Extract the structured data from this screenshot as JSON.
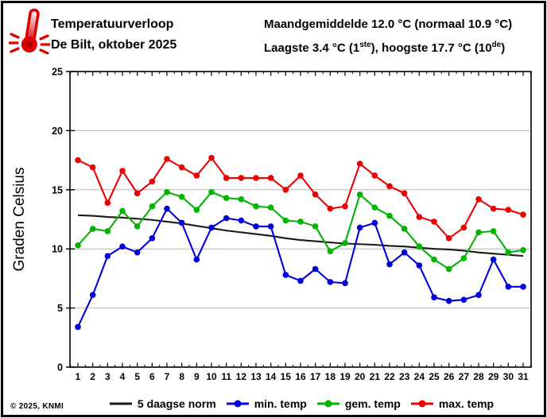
{
  "header": {
    "title": "Temperatuurverloop",
    "subtitle": "De Bilt, oktober 2025",
    "right_line1": "Maandgemiddelde 12.0 °C (normaal 10.9 °C)",
    "right_line2_parts": [
      "Laagste 3.4 °C (1",
      "ste",
      "), hoogste 17.7 °C (10",
      "de",
      ")"
    ]
  },
  "footer": {
    "copyright": "© 2025, KNMI"
  },
  "legend": [
    {
      "label": "5 daagse norm",
      "color": "#1a1a1a",
      "marker": "line"
    },
    {
      "label": "min. temp",
      "color": "#0000dd",
      "marker": "line-dot"
    },
    {
      "label": "gem. temp",
      "color": "#00b400",
      "marker": "line-dot"
    },
    {
      "label": "max. temp",
      "color": "#ee0000",
      "marker": "line-dot"
    }
  ],
  "chart_data": {
    "type": "line",
    "title": "Temperatuurverloop — De Bilt, oktober 2025",
    "ylabel": "Graden Celsius",
    "xlabel": "",
    "x": [
      1,
      2,
      3,
      4,
      5,
      6,
      7,
      8,
      9,
      10,
      11,
      12,
      13,
      14,
      15,
      16,
      17,
      18,
      19,
      20,
      21,
      22,
      23,
      24,
      25,
      26,
      27,
      28,
      29,
      30,
      31
    ],
    "ylim": [
      0,
      25
    ],
    "yticks": [
      0,
      5,
      10,
      15,
      20,
      25
    ],
    "grid": "horizontal",
    "legend_position": "bottom",
    "series": [
      {
        "name": "5 daagse norm",
        "color": "#1a1a1a",
        "marker": false,
        "values": [
          12.85,
          12.8,
          12.7,
          12.65,
          12.55,
          12.45,
          12.3,
          12.15,
          11.95,
          11.75,
          11.55,
          11.4,
          11.25,
          11.1,
          10.9,
          10.75,
          10.65,
          10.55,
          10.45,
          10.4,
          10.35,
          10.25,
          10.2,
          10.1,
          10.0,
          9.95,
          9.85,
          9.7,
          9.6,
          9.5,
          9.4
        ]
      },
      {
        "name": "min. temp",
        "color": "#0000dd",
        "marker": true,
        "values": [
          3.4,
          6.1,
          9.4,
          10.2,
          9.7,
          10.9,
          13.4,
          12.2,
          9.1,
          11.8,
          12.6,
          12.4,
          11.9,
          11.9,
          7.8,
          7.3,
          8.3,
          7.2,
          7.1,
          11.8,
          12.2,
          8.7,
          9.7,
          8.6,
          5.9,
          5.6,
          5.7,
          6.1,
          9.1,
          6.8,
          6.8
        ]
      },
      {
        "name": "gem. temp",
        "color": "#00b400",
        "marker": true,
        "values": [
          10.3,
          11.7,
          11.5,
          13.2,
          11.9,
          13.6,
          14.8,
          14.4,
          13.3,
          14.8,
          14.3,
          14.2,
          13.6,
          13.5,
          12.4,
          12.3,
          11.9,
          9.8,
          10.5,
          14.6,
          13.5,
          12.8,
          11.7,
          10.2,
          9.1,
          8.3,
          9.2,
          11.4,
          11.5,
          9.7,
          9.9
        ]
      },
      {
        "name": "max. temp",
        "color": "#ee0000",
        "marker": true,
        "values": [
          17.5,
          16.9,
          13.9,
          16.6,
          14.7,
          15.7,
          17.6,
          16.9,
          16.2,
          17.7,
          16.0,
          16.0,
          16.0,
          16.0,
          15.0,
          16.2,
          14.6,
          13.4,
          13.6,
          17.2,
          16.2,
          15.3,
          14.7,
          12.7,
          12.3,
          10.9,
          11.8,
          14.2,
          13.4,
          13.3,
          12.9
        ]
      }
    ],
    "annotations": {
      "month_mean_c": 12.0,
      "normal_mean_c": 10.9,
      "lowest_c": 3.4,
      "lowest_day": 1,
      "highest_c": 17.7,
      "highest_day": 10
    }
  }
}
